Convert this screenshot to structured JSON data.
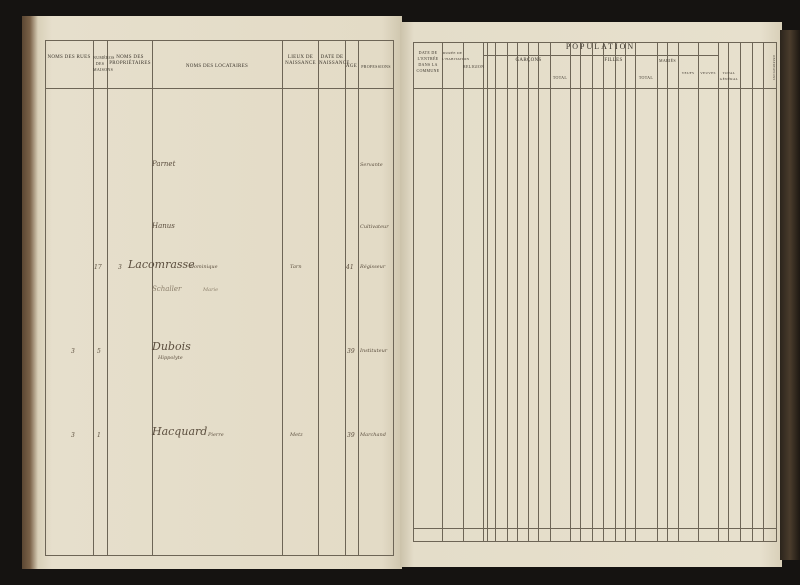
{
  "left_page": {
    "headers": [
      "Noms des rues",
      "Numéros des maisons",
      "Noms des propriétaires",
      "Noms des locataires",
      "Lieux de naissance",
      "Date de naissance",
      "Age",
      "Professions"
    ],
    "entries": [
      {
        "num": "3",
        "house": "17",
        "name": "Lacomrasse",
        "given": "Dominique",
        "place": "Tarn",
        "age": "41",
        "profession": "Régisseur"
      },
      {
        "num": "3",
        "house": "5",
        "name": "Dubois",
        "given": "Hippolyte",
        "age": "39",
        "profession": "Instituteur"
      },
      {
        "num": "3",
        "house": "1",
        "name": "Hacquard",
        "given": "Pierre",
        "place": "Metz",
        "age": "39",
        "profession": "Marchand"
      },
      {
        "name": "Parnet",
        "profession": "Servante"
      },
      {
        "name": "Hanus",
        "profession": "Cultivateur"
      },
      {
        "name": "Schaller",
        "given": "Marie"
      }
    ]
  },
  "right_page": {
    "headers": {
      "date": "Date de l'entrée dans la commune",
      "duree": "Durée de l'habitation",
      "religion": "Religion",
      "population": "Population",
      "garcons": "Garçons",
      "filles": "Filles",
      "maries": "Mariés",
      "total": "Total",
      "veufs": "Veufs",
      "veuves": "Veuves",
      "total_general": "Total général",
      "observations": "Observations"
    }
  }
}
